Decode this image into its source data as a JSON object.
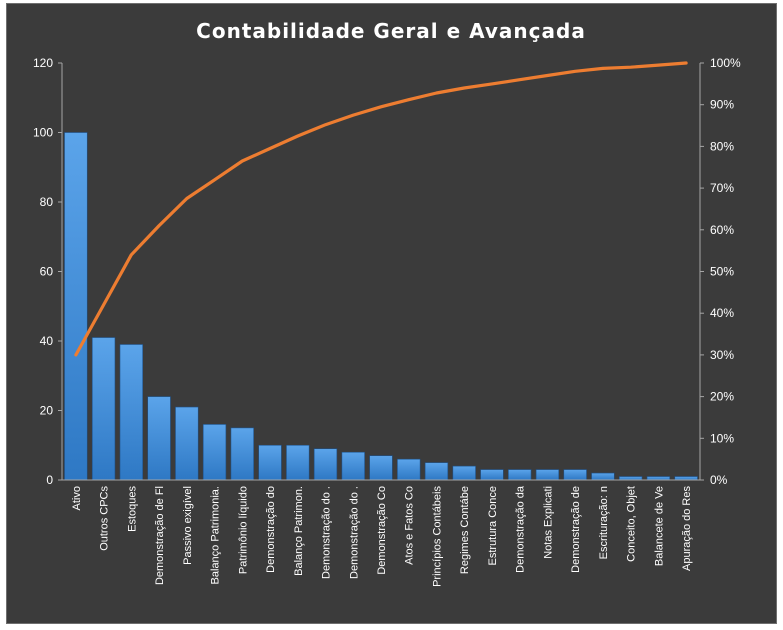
{
  "chart_data": {
    "type": "bar",
    "title": "Contabilidade  Geral  e  Avançada",
    "categories": [
      "Ativo",
      "Outros CPCs",
      "Estoques",
      "Demonstração de Fl",
      "Passivo exigível",
      "Balanço Patrimonia.",
      "Patrimônio líquido",
      "Demonstração do",
      "Balanço Patrimon.",
      "Demonstração do .",
      "Demonstração do .",
      "Demonstração Co",
      "Atos e Fatos Co",
      "Princípios Contábeis",
      "Regimes Contábe",
      "Estrutura Conce",
      "Demonstração da",
      "Notas Explicati",
      "Demonstração de",
      "Escrituração: n",
      "Conceito, Objet",
      "Balancete de Ve",
      "Apuração do Res"
    ],
    "series": [
      {
        "axis": "left",
        "type": "bar",
        "color": "#3f8fdc",
        "values": [
          100,
          41,
          39,
          24,
          21,
          16,
          15,
          10,
          10,
          9,
          8,
          7,
          6,
          5,
          4,
          3,
          3,
          3,
          3,
          2,
          1,
          1,
          1
        ]
      },
      {
        "axis": "right",
        "type": "line",
        "color": "#ed7d31",
        "values": [
          0.3,
          0.42,
          0.54,
          0.61,
          0.675,
          0.72,
          0.765,
          0.795,
          0.825,
          0.852,
          0.875,
          0.895,
          0.912,
          0.928,
          0.94,
          0.95,
          0.96,
          0.97,
          0.98,
          0.987,
          0.99,
          0.995,
          1.0
        ]
      }
    ],
    "ylim": [
      0,
      120
    ],
    "yticks": [
      "0",
      "20",
      "40",
      "60",
      "80",
      "100",
      "120"
    ],
    "y2lim": [
      0,
      1
    ],
    "y2ticks": [
      "0%",
      "10%",
      "20%",
      "30%",
      "40%",
      "50%",
      "60%",
      "70%",
      "80%",
      "90%",
      "100%"
    ],
    "grid": false,
    "legend": "none"
  }
}
